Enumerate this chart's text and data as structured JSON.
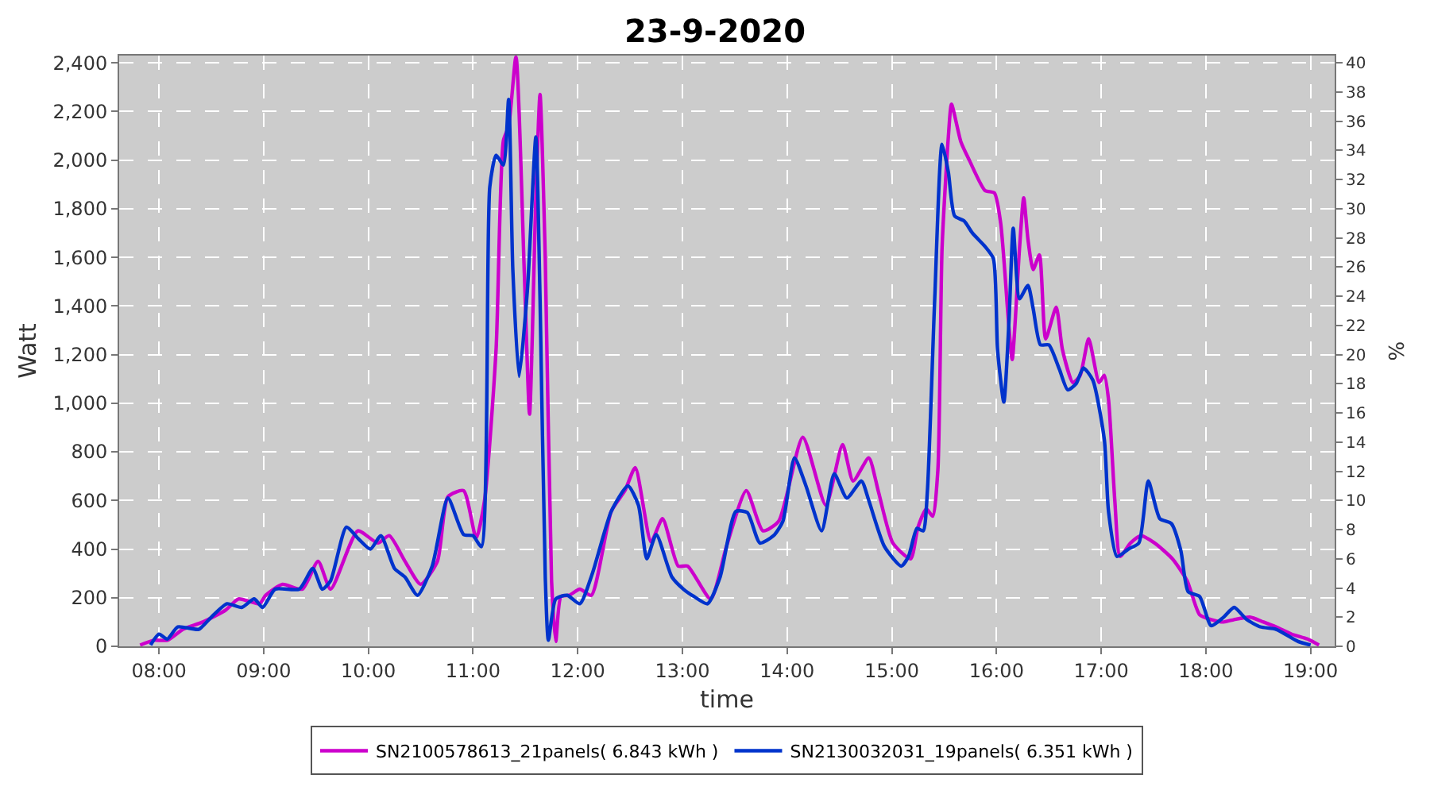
{
  "chart_data": {
    "type": "line",
    "title": "23-9-2020",
    "xlabel": "time",
    "ylabel": "Watt",
    "y2label": "%",
    "xlim": [
      7.62,
      19.23
    ],
    "xticks": [
      {
        "value": 8,
        "label": "08:00"
      },
      {
        "value": 9,
        "label": "09:00"
      },
      {
        "value": 10,
        "label": "10:00"
      },
      {
        "value": 11,
        "label": "11:00"
      },
      {
        "value": 12,
        "label": "12:00"
      },
      {
        "value": 13,
        "label": "13:00"
      },
      {
        "value": 14,
        "label": "14:00"
      },
      {
        "value": 15,
        "label": "15:00"
      },
      {
        "value": 16,
        "label": "16:00"
      },
      {
        "value": 17,
        "label": "17:00"
      },
      {
        "value": 18,
        "label": "18:00"
      },
      {
        "value": 19,
        "label": "19:00"
      }
    ],
    "ylim": [
      0,
      2430
    ],
    "yticks": [
      {
        "value": 0,
        "label": "0"
      },
      {
        "value": 200,
        "label": "200"
      },
      {
        "value": 400,
        "label": "400"
      },
      {
        "value": 600,
        "label": "600"
      },
      {
        "value": 800,
        "label": "800"
      },
      {
        "value": 1000,
        "label": "1,000"
      },
      {
        "value": 1200,
        "label": "1,200"
      },
      {
        "value": 1400,
        "label": "1,400"
      },
      {
        "value": 1600,
        "label": "1,600"
      },
      {
        "value": 1800,
        "label": "1,800"
      },
      {
        "value": 2000,
        "label": "2,000"
      },
      {
        "value": 2200,
        "label": "2,200"
      },
      {
        "value": 2400,
        "label": "2,400"
      }
    ],
    "y2lim": [
      0,
      40.5
    ],
    "y2ticks": [
      0,
      2,
      4,
      6,
      8,
      10,
      12,
      14,
      16,
      18,
      20,
      22,
      24,
      26,
      28,
      30,
      32,
      34,
      36,
      38,
      40
    ],
    "grid": true,
    "legend": "bottom",
    "marker": "none",
    "line_style": "solid",
    "series": [
      {
        "name": "SN2100578613_21panels( 6.843 kWh )",
        "color": "#cc00cc",
        "x": [
          7.82,
          7.95,
          8.08,
          8.23,
          8.42,
          8.64,
          8.76,
          8.96,
          9.02,
          9.18,
          9.37,
          9.52,
          9.64,
          9.9,
          10.09,
          10.2,
          10.35,
          10.5,
          10.66,
          10.76,
          10.91,
          11.03,
          11.11,
          11.22,
          11.29,
          11.34,
          11.41,
          11.49,
          11.54,
          11.6,
          11.64,
          11.69,
          11.75,
          11.79,
          11.84,
          11.92,
          12.02,
          12.13,
          12.32,
          12.45,
          12.55,
          12.7,
          12.81,
          12.96,
          13.05,
          13.27,
          13.42,
          13.61,
          13.77,
          13.92,
          14.15,
          14.37,
          14.53,
          14.63,
          14.78,
          14.87,
          15.01,
          15.18,
          15.25,
          15.33,
          15.39,
          15.44,
          15.48,
          15.54,
          15.57,
          15.66,
          15.74,
          15.89,
          15.98,
          16.04,
          16.12,
          16.15,
          16.22,
          16.26,
          16.3,
          16.35,
          16.41,
          16.47,
          16.57,
          16.63,
          16.73,
          16.8,
          16.88,
          16.98,
          17.03,
          17.07,
          17.13,
          17.18,
          17.28,
          17.38,
          17.51,
          17.68,
          17.82,
          17.94,
          18.05,
          18.17,
          18.27,
          18.42,
          18.55,
          18.67,
          18.82,
          18.97,
          19.08
        ],
        "values": [
          5,
          25,
          25,
          70,
          100,
          150,
          195,
          175,
          210,
          255,
          235,
          350,
          235,
          475,
          425,
          455,
          350,
          255,
          350,
          615,
          640,
          445,
          600,
          1220,
          2080,
          2140,
          2425,
          1535,
          955,
          1845,
          2270,
          1595,
          270,
          20,
          205,
          210,
          235,
          210,
          555,
          640,
          735,
          430,
          525,
          330,
          330,
          195,
          410,
          640,
          475,
          515,
          860,
          580,
          830,
          680,
          775,
          640,
          425,
          360,
          490,
          565,
          535,
          725,
          1640,
          2095,
          2230,
          2075,
          2000,
          1875,
          1865,
          1740,
          1305,
          1180,
          1640,
          1845,
          1675,
          1550,
          1610,
          1265,
          1395,
          1220,
          1085,
          1115,
          1265,
          1085,
          1115,
          1015,
          600,
          370,
          425,
          455,
          425,
          360,
          270,
          130,
          110,
          100,
          110,
          120,
          100,
          80,
          50,
          30,
          5
        ]
      },
      {
        "name": "SN2130032031_19panels( 6.351 kWh )",
        "color": "#0033cc",
        "x": [
          7.92,
          8.0,
          8.08,
          8.18,
          8.38,
          8.5,
          8.65,
          8.79,
          8.91,
          8.99,
          9.11,
          9.34,
          9.47,
          9.56,
          9.64,
          9.79,
          9.9,
          10.02,
          10.12,
          10.25,
          10.35,
          10.47,
          10.61,
          10.76,
          10.91,
          11.0,
          11.08,
          11.16,
          11.22,
          11.29,
          11.34,
          11.38,
          11.44,
          11.52,
          11.6,
          11.64,
          11.69,
          11.72,
          11.79,
          11.9,
          12.02,
          12.14,
          12.32,
          12.48,
          12.58,
          12.66,
          12.75,
          12.9,
          13.01,
          13.11,
          13.24,
          13.36,
          13.51,
          13.62,
          13.74,
          13.87,
          13.96,
          14.07,
          14.18,
          14.33,
          14.45,
          14.57,
          14.71,
          14.78,
          14.93,
          15.09,
          15.16,
          15.24,
          15.3,
          15.34,
          15.41,
          15.48,
          15.54,
          15.6,
          15.69,
          15.77,
          15.89,
          15.97,
          16.01,
          16.07,
          16.12,
          16.16,
          16.22,
          16.3,
          16.35,
          16.42,
          16.5,
          16.6,
          16.68,
          16.76,
          16.83,
          16.92,
          17.03,
          17.07,
          17.15,
          17.26,
          17.36,
          17.45,
          17.56,
          17.67,
          17.76,
          17.83,
          17.94,
          18.05,
          18.17,
          18.27,
          18.39,
          18.52,
          18.67,
          18.88,
          19.0
        ],
        "values": [
          5,
          50,
          30,
          80,
          70,
          120,
          175,
          160,
          195,
          160,
          235,
          235,
          320,
          235,
          270,
          490,
          445,
          400,
          455,
          320,
          285,
          210,
          330,
          610,
          460,
          455,
          410,
          1890,
          2020,
          1980,
          2250,
          1550,
          1110,
          1470,
          2095,
          1430,
          285,
          25,
          195,
          210,
          175,
          300,
          555,
          660,
          580,
          360,
          460,
          285,
          235,
          205,
          175,
          285,
          555,
          550,
          425,
          455,
          515,
          775,
          660,
          475,
          710,
          610,
          680,
          600,
          410,
          330,
          370,
          485,
          475,
          640,
          1430,
          2065,
          1950,
          1770,
          1750,
          1700,
          1645,
          1595,
          1220,
          1005,
          1345,
          1720,
          1430,
          1485,
          1390,
          1240,
          1240,
          1140,
          1055,
          1080,
          1145,
          1095,
          850,
          555,
          370,
          400,
          425,
          680,
          525,
          505,
          395,
          225,
          205,
          85,
          120,
          160,
          110,
          80,
          70,
          20,
          5
        ]
      }
    ]
  }
}
